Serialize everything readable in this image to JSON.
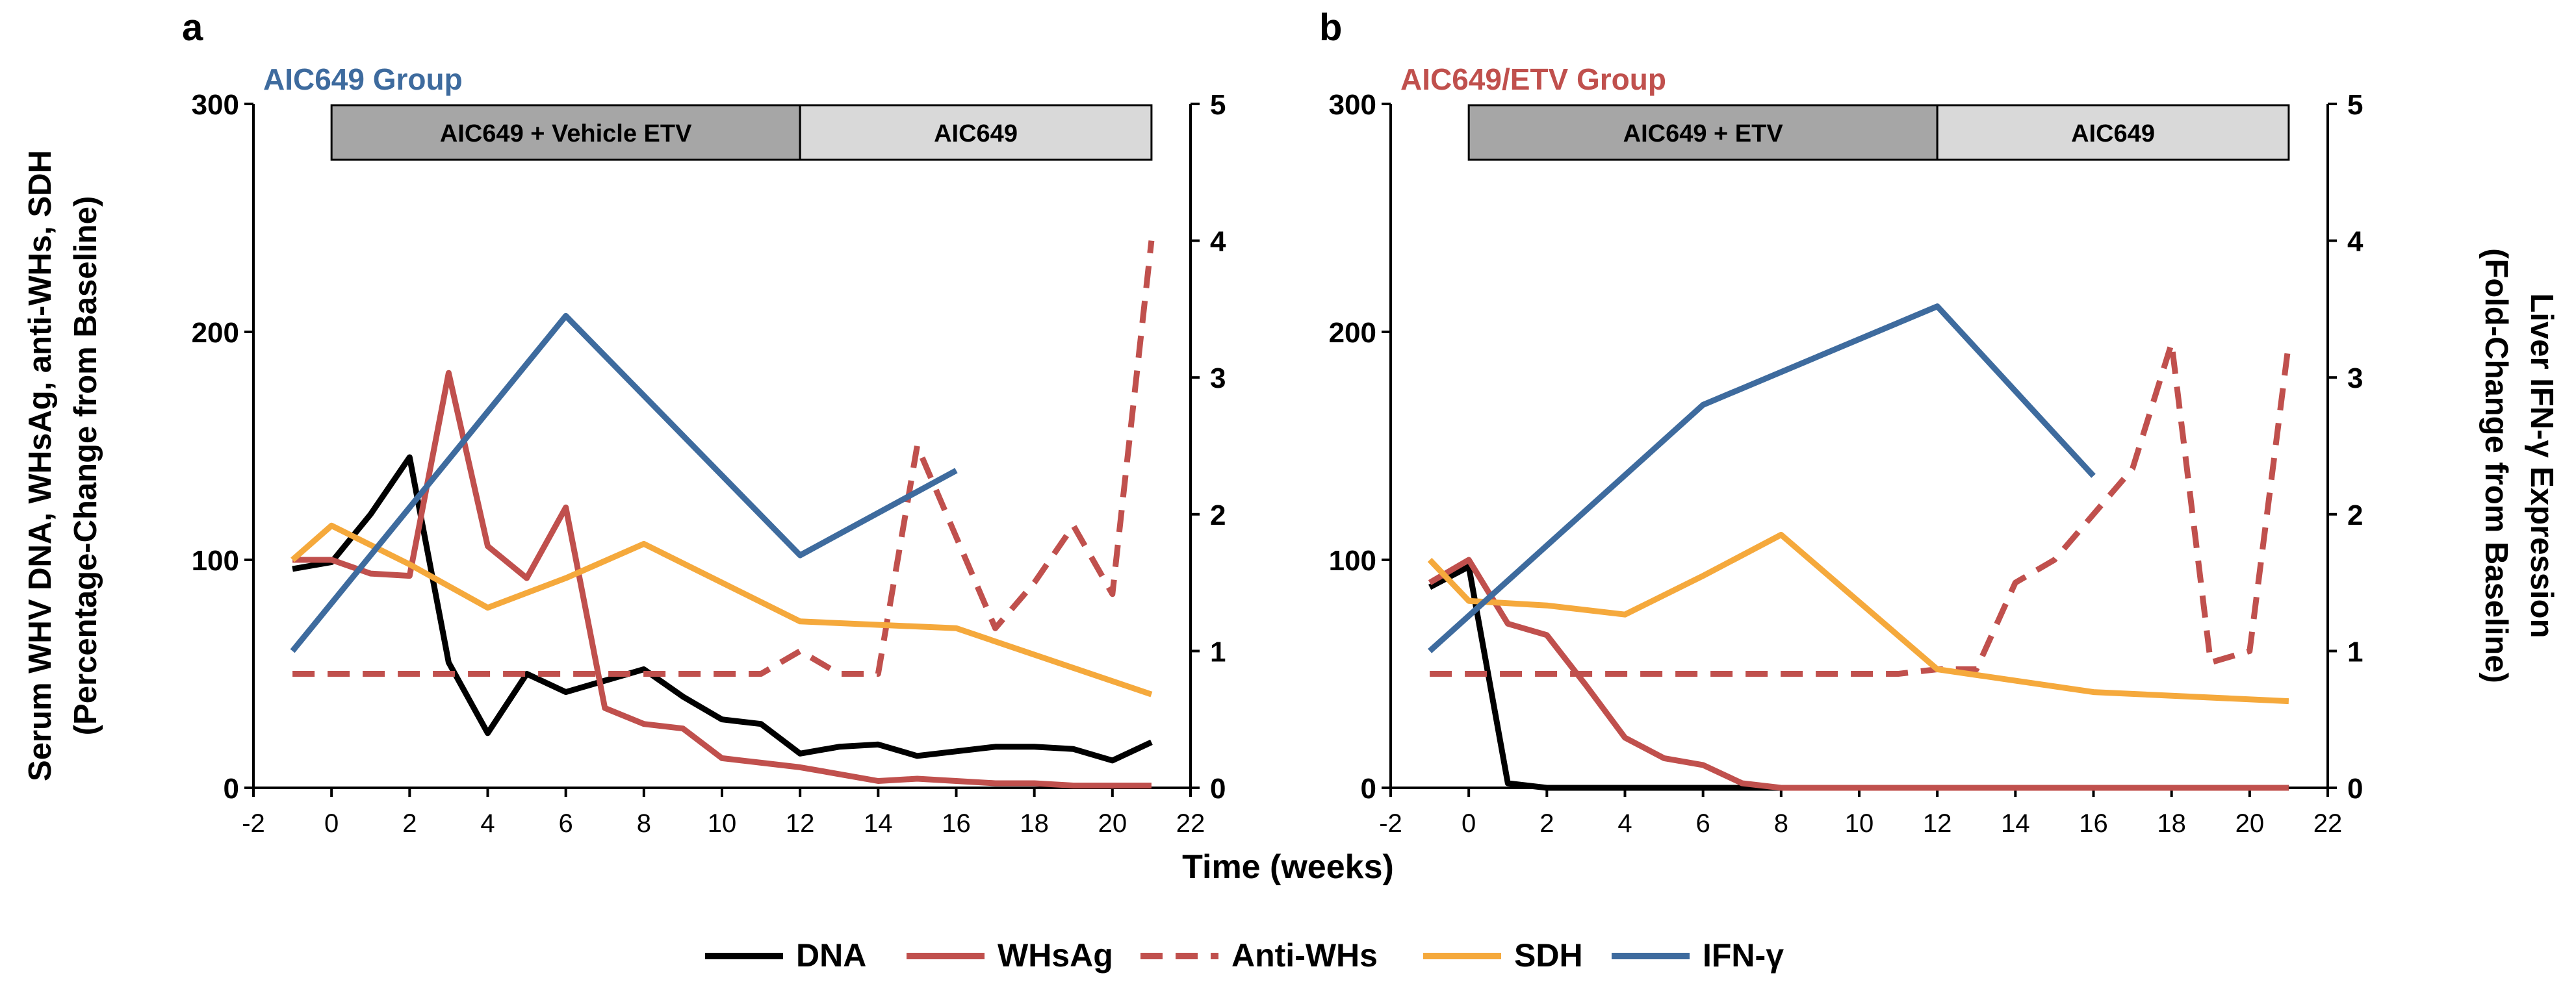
{
  "figure": {
    "left_ylabel_line1": "Serum WHV DNA, WHsAg, anti-WHs, SDH",
    "left_ylabel_line2": "(Percentage-Change from Baseline)",
    "right_ylabel_line1": "Liver IFN-γ Expression",
    "right_ylabel_line2": "(Fold-Change from Baseline)",
    "xlabel": "Time (weeks)"
  },
  "legend": [
    {
      "name": "DNA",
      "color": "#000000",
      "dash": false
    },
    {
      "name": "WHsAg",
      "color": "#c0504d",
      "dash": false
    },
    {
      "name": "Anti-WHs",
      "color": "#c0504d",
      "dash": true
    },
    {
      "name": "SDH",
      "color": "#f5a93c",
      "dash": false
    },
    {
      "name": "IFN-γ",
      "color": "#3e6b9e",
      "dash": false
    }
  ],
  "colors": {
    "dna": "#000000",
    "whsag": "#c0504d",
    "antiwhs": "#c0504d",
    "sdh": "#f5a93c",
    "ifng": "#3e6b9e",
    "phase_dark": "#a6a6a6",
    "phase_light": "#d9d9d9"
  },
  "chart_data": [
    {
      "type": "line",
      "panel_label": "a",
      "title": "AIC649 Group",
      "title_color": "#3e6b9e",
      "xlabel": "Time (weeks)",
      "ylabel": "Serum WHV DNA, WHsAg, anti-WHs, SDH (Percentage-Change from Baseline)",
      "y2label": "Liver IFN-γ Expression (Fold-Change from Baseline)",
      "xlim": [
        -2,
        22
      ],
      "ylim": [
        0,
        300
      ],
      "y2lim": [
        0,
        5
      ],
      "xticks": [
        -2,
        0,
        2,
        4,
        6,
        8,
        10,
        12,
        14,
        16,
        18,
        20,
        22
      ],
      "yticks": [
        0,
        100,
        200,
        300
      ],
      "y2ticks": [
        0,
        1,
        2,
        3,
        4,
        5
      ],
      "phases": [
        {
          "label": "AIC649 + Vehicle ETV",
          "start": 0,
          "end": 12,
          "shade": "dark"
        },
        {
          "label": "AIC649",
          "start": 12,
          "end": 21,
          "shade": "light"
        }
      ],
      "series": [
        {
          "name": "DNA",
          "axis": "left",
          "x": [
            -1,
            0,
            1,
            2,
            3,
            4,
            5,
            6,
            7,
            8,
            9,
            10,
            11,
            12,
            13,
            14,
            15,
            16,
            17,
            18,
            19,
            20,
            21
          ],
          "values": [
            96,
            99,
            120,
            145,
            55,
            24,
            50,
            42,
            47,
            52,
            40,
            30,
            28,
            15,
            18,
            19,
            14,
            16,
            18,
            18,
            17,
            12,
            20
          ]
        },
        {
          "name": "WHsAg",
          "axis": "left",
          "x": [
            -1,
            0,
            1,
            2,
            3,
            4,
            5,
            6,
            7,
            8,
            9,
            10,
            11,
            12,
            13,
            14,
            15,
            16,
            17,
            18,
            19,
            20,
            21
          ],
          "values": [
            100,
            100,
            94,
            93,
            182,
            106,
            92,
            123,
            35,
            28,
            26,
            13,
            11,
            9,
            6,
            3,
            4,
            3,
            2,
            2,
            1,
            1,
            1
          ]
        },
        {
          "name": "Anti-WHs",
          "axis": "left",
          "x": [
            -1,
            0,
            1,
            2,
            3,
            4,
            5,
            6,
            7,
            8,
            9,
            10,
            11,
            12,
            13,
            14,
            15,
            16,
            17,
            18,
            19,
            20,
            21
          ],
          "values": [
            50,
            50,
            50,
            50,
            50,
            50,
            50,
            50,
            50,
            50,
            50,
            50,
            50,
            60,
            50,
            50,
            150,
            110,
            70,
            90,
            115,
            85,
            240
          ]
        },
        {
          "name": "SDH",
          "axis": "left",
          "x": [
            -1,
            0,
            2,
            4,
            6,
            8,
            12,
            16,
            21
          ],
          "values": [
            100,
            115,
            98,
            79,
            92,
            107,
            73,
            70,
            41
          ]
        },
        {
          "name": "IFN-γ",
          "axis": "right",
          "x": [
            -1,
            6,
            12,
            16
          ],
          "values": [
            1.0,
            3.45,
            1.7,
            2.32
          ]
        }
      ]
    },
    {
      "type": "line",
      "panel_label": "b",
      "title": "AIC649/ETV Group",
      "title_color": "#c0504d",
      "xlabel": "Time (weeks)",
      "ylabel": "Serum WHV DNA, WHsAg, anti-WHs, SDH (Percentage-Change from Baseline)",
      "y2label": "Liver IFN-γ Expression (Fold-Change from Baseline)",
      "xlim": [
        -2,
        22
      ],
      "ylim": [
        0,
        300
      ],
      "y2lim": [
        0,
        5
      ],
      "xticks": [
        -2,
        0,
        2,
        4,
        6,
        8,
        10,
        12,
        14,
        16,
        18,
        20,
        22
      ],
      "yticks": [
        0,
        100,
        200,
        300
      ],
      "y2ticks": [
        0,
        1,
        2,
        3,
        4,
        5
      ],
      "phases": [
        {
          "label": "AIC649 + ETV",
          "start": 0,
          "end": 12,
          "shade": "dark"
        },
        {
          "label": "AIC649",
          "start": 12,
          "end": 21,
          "shade": "light"
        }
      ],
      "series": [
        {
          "name": "DNA",
          "axis": "left",
          "x": [
            -1,
            0,
            1,
            2,
            4,
            6,
            7,
            8,
            12,
            16,
            21
          ],
          "values": [
            88,
            97,
            2,
            0,
            0,
            0,
            0,
            0,
            0,
            0,
            0
          ]
        },
        {
          "name": "WHsAg",
          "axis": "left",
          "x": [
            -1,
            0,
            1,
            2,
            3,
            4,
            5,
            6,
            7,
            8,
            10,
            12,
            16,
            21
          ],
          "values": [
            90,
            100,
            72,
            67,
            45,
            22,
            13,
            10,
            2,
            0,
            0,
            0,
            0,
            0
          ]
        },
        {
          "name": "Anti-WHs",
          "axis": "left",
          "x": [
            -1,
            0,
            1,
            2,
            3,
            4,
            5,
            6,
            7,
            8,
            9,
            10,
            11,
            12,
            13,
            14,
            15,
            16,
            17,
            18,
            19,
            20,
            21
          ],
          "values": [
            50,
            50,
            50,
            50,
            50,
            50,
            50,
            50,
            50,
            50,
            50,
            50,
            50,
            52,
            52,
            90,
            100,
            120,
            140,
            195,
            55,
            60,
            195
          ]
        },
        {
          "name": "SDH",
          "axis": "left",
          "x": [
            -1,
            0,
            2,
            4,
            6,
            8,
            12,
            16,
            21
          ],
          "values": [
            100,
            82,
            80,
            76,
            93,
            111,
            52,
            42,
            38
          ]
        },
        {
          "name": "IFN-γ",
          "axis": "right",
          "x": [
            -1,
            6,
            12,
            16
          ],
          "values": [
            1.0,
            2.8,
            3.52,
            2.28
          ]
        }
      ]
    }
  ]
}
